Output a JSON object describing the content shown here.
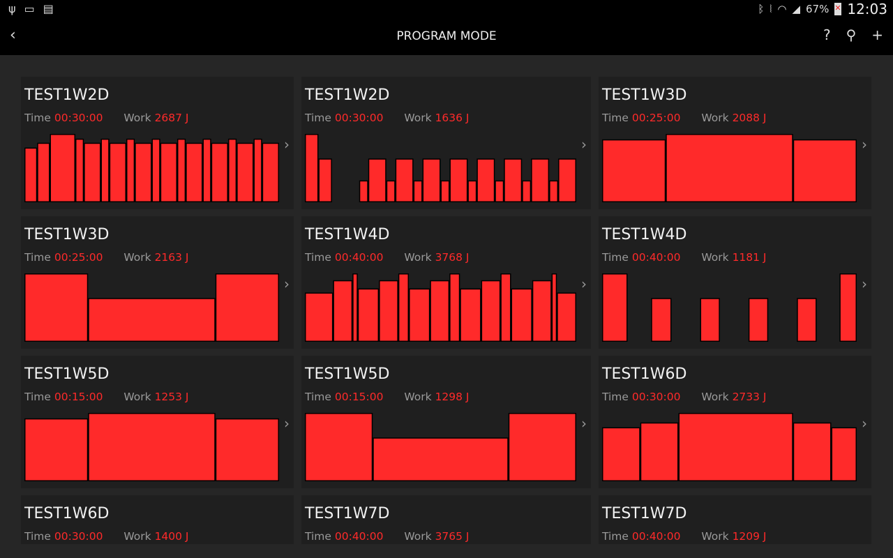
{
  "status_bar": {
    "left_icons": [
      "usb-icon",
      "screen-cast-icon",
      "sim-card-icon"
    ],
    "right_icons": [
      "bluetooth-icon",
      "vibrate-mute-icon",
      "wifi-icon",
      "signal-icon"
    ],
    "battery": "67%",
    "time": "12:03"
  },
  "action_bar": {
    "title": "PROGRAM MODE",
    "back_icon": "‹",
    "help_icon": "?",
    "search_icon": "⚲",
    "add_icon": "+"
  },
  "labels": {
    "time": "Time",
    "work": "Work"
  },
  "colors": {
    "bar": "#ff2a2a",
    "value": "#ff2a2a",
    "card": "#1f1f1f",
    "background": "#262626"
  },
  "cards": [
    {
      "name": "TEST1W2D",
      "time": "00:30:00",
      "work": "2687 J",
      "segments": [
        [
          1.5,
          0.8
        ],
        [
          1.5,
          0.87
        ],
        [
          3,
          1
        ],
        [
          1,
          0.93
        ],
        [
          2,
          0.87
        ],
        [
          1,
          0.93
        ],
        [
          2,
          0.87
        ],
        [
          1,
          0.93
        ],
        [
          2,
          0.87
        ],
        [
          1,
          0.93
        ],
        [
          2,
          0.87
        ],
        [
          1,
          0.93
        ],
        [
          2,
          0.87
        ],
        [
          1,
          0.93
        ],
        [
          2,
          0.87
        ],
        [
          1,
          0.93
        ],
        [
          2,
          0.87
        ],
        [
          1,
          0.93
        ],
        [
          2,
          0.87
        ]
      ]
    },
    {
      "name": "TEST1W2D",
      "time": "00:30:00",
      "work": "1636 J",
      "segments": [
        [
          1.5,
          1
        ],
        [
          1.5,
          0.64
        ],
        [
          3,
          0
        ],
        [
          1,
          0.32
        ],
        [
          2,
          0.64
        ],
        [
          1,
          0.32
        ],
        [
          2,
          0.64
        ],
        [
          1,
          0.32
        ],
        [
          2,
          0.64
        ],
        [
          1,
          0.32
        ],
        [
          2,
          0.64
        ],
        [
          1,
          0.32
        ],
        [
          2,
          0.64
        ],
        [
          1,
          0.32
        ],
        [
          2,
          0.64
        ],
        [
          1,
          0.32
        ],
        [
          2,
          0.64
        ],
        [
          1,
          0.32
        ],
        [
          2,
          0.64
        ]
      ]
    },
    {
      "name": "TEST1W3D",
      "time": "00:25:00",
      "work": "2088 J",
      "segments": [
        [
          6.25,
          0.92
        ],
        [
          12.5,
          1
        ],
        [
          6.25,
          0.92
        ]
      ]
    },
    {
      "name": "TEST1W3D",
      "time": "00:25:00",
      "work": "2163 J",
      "segments": [
        [
          6.25,
          1
        ],
        [
          12.5,
          0.64
        ],
        [
          6.25,
          1
        ]
      ]
    },
    {
      "name": "TEST1W4D",
      "time": "00:40:00",
      "work": "3768 J",
      "segments": [
        [
          4,
          0.72
        ],
        [
          2.75,
          0.9
        ],
        [
          0.75,
          1
        ],
        [
          3,
          0.78
        ],
        [
          2.75,
          0.9
        ],
        [
          1.5,
          1
        ],
        [
          3,
          0.78
        ],
        [
          2.75,
          0.9
        ],
        [
          1.5,
          1
        ],
        [
          3,
          0.78
        ],
        [
          2.75,
          0.9
        ],
        [
          1.5,
          1
        ],
        [
          3,
          0.78
        ],
        [
          2.75,
          0.9
        ],
        [
          0.75,
          1
        ],
        [
          2.75,
          0.72
        ]
      ]
    },
    {
      "name": "TEST1W4D",
      "time": "00:40:00",
      "work": "1181 J",
      "segments": [
        [
          4,
          1
        ],
        [
          3.7,
          0
        ],
        [
          3.2,
          0.64
        ],
        [
          4.5,
          0
        ],
        [
          3.1,
          0.64
        ],
        [
          4.5,
          0
        ],
        [
          3.1,
          0.64
        ],
        [
          4.5,
          0
        ],
        [
          3.1,
          0.64
        ],
        [
          3.6,
          0
        ],
        [
          2.7,
          1
        ]
      ]
    },
    {
      "name": "TEST1W5D",
      "time": "00:15:00",
      "work": "1253 J",
      "segments": [
        [
          3.75,
          0.92
        ],
        [
          7.5,
          1
        ],
        [
          3.75,
          0.92
        ]
      ]
    },
    {
      "name": "TEST1W5D",
      "time": "00:15:00",
      "work": "1298 J",
      "segments": [
        [
          3.75,
          1
        ],
        [
          7.5,
          0.64
        ],
        [
          3.75,
          1
        ]
      ]
    },
    {
      "name": "TEST1W6D",
      "time": "00:30:00",
      "work": "2733 J",
      "segments": [
        [
          4.5,
          0.79
        ],
        [
          4.5,
          0.86
        ],
        [
          13.5,
          1
        ],
        [
          4.5,
          0.86
        ],
        [
          3,
          0.79
        ]
      ]
    },
    {
      "name": "TEST1W6D",
      "time": "00:30:00",
      "work": "1400 J",
      "segments": []
    },
    {
      "name": "TEST1W7D",
      "time": "00:40:00",
      "work": "3765 J",
      "segments": []
    },
    {
      "name": "TEST1W7D",
      "time": "00:40:00",
      "work": "1209 J",
      "segments": []
    }
  ]
}
